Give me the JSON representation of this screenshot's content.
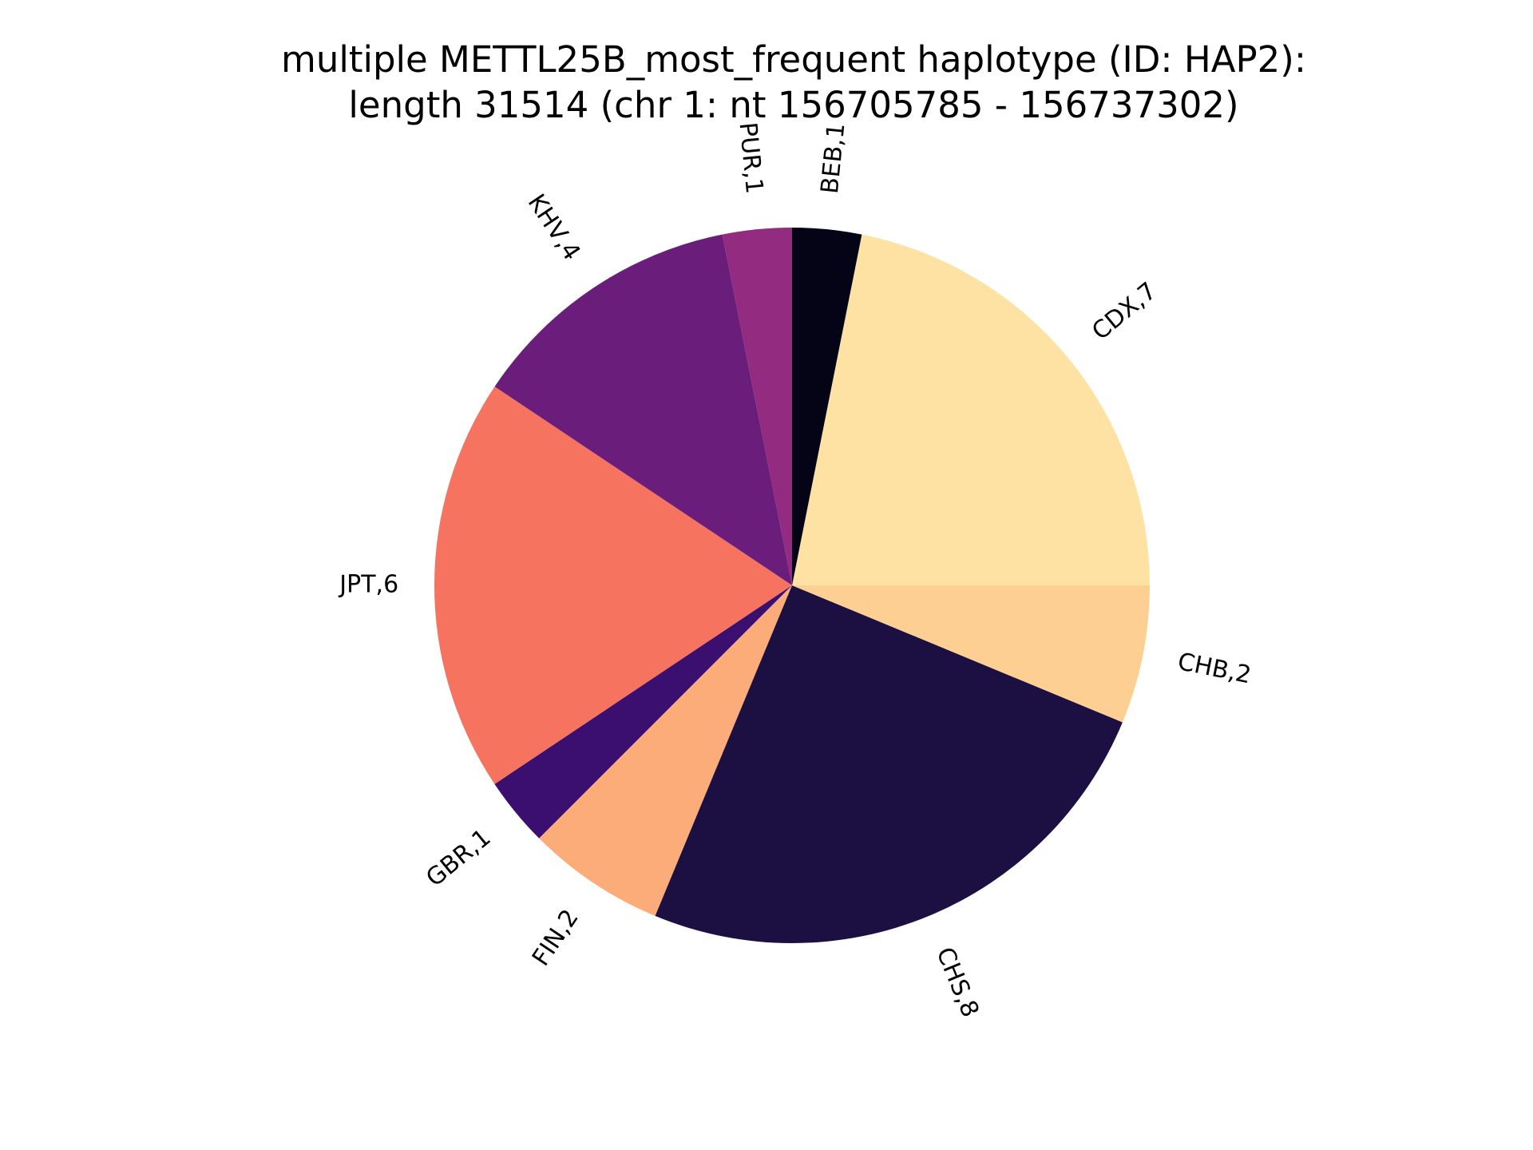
{
  "chart_data": {
    "type": "pie",
    "title_lines": [
      "multiple METTL25B_most_frequent haplotype (ID: HAP2):",
      "length 31514 (chr 1: nt 156705785 - 156737302)"
    ],
    "start_angle_deg": 0,
    "direction": "counterclockwise",
    "slices": [
      {
        "label": "CDX,7",
        "value": 7,
        "color": "#fde2a3"
      },
      {
        "label": "BEB,1",
        "value": 1,
        "color": "#050417"
      },
      {
        "label": "PUR,1",
        "value": 1,
        "color": "#932b80"
      },
      {
        "label": "KHV,4",
        "value": 4,
        "color": "#6b1d7c"
      },
      {
        "label": "JPT,6",
        "value": 6,
        "color": "#f5735f"
      },
      {
        "label": "GBR,1",
        "value": 1,
        "color": "#3b0f70"
      },
      {
        "label": "FIN,2",
        "value": 2,
        "color": "#fcac78"
      },
      {
        "label": "CHS,8",
        "value": 8,
        "color": "#1c1042"
      },
      {
        "label": "CHB,2",
        "value": 2,
        "color": "#fdcf92"
      }
    ]
  }
}
